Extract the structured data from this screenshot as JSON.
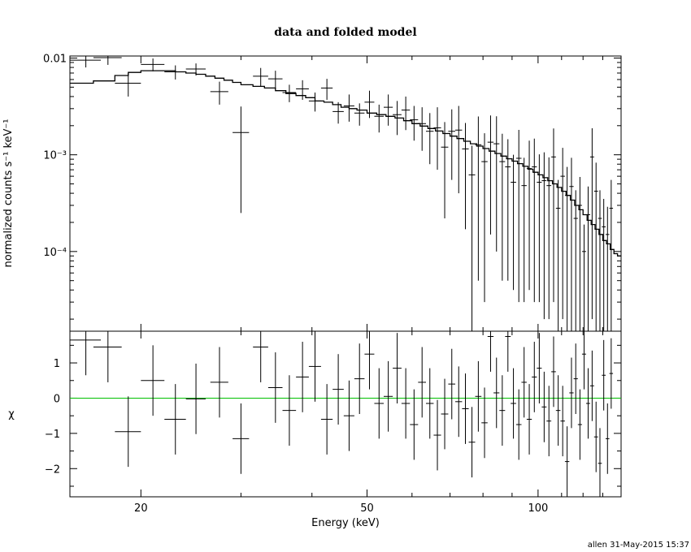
{
  "chart_data": [
    {
      "type": "scatter",
      "title": "data and folded model",
      "xlabel": "",
      "ylabel": "normalized counts s⁻¹ keV⁻¹",
      "xlim": [
        15,
        140
      ],
      "xscale": "log",
      "ylim": [
        1.5e-05,
        0.0105
      ],
      "yscale": "log",
      "yticks": [
        {
          "value": 0.01,
          "label": "0.01"
        },
        {
          "value": 0.001,
          "label": "10⁻³"
        },
        {
          "value": 0.0001,
          "label": "10⁻⁴"
        }
      ],
      "series": [
        {
          "name": "",
          "kind": "data",
          "x": [
            16.0,
            17.5,
            19.0,
            21.0,
            23.0,
            25.0,
            27.5,
            30.0,
            32.5,
            34.5,
            36.5,
            38.5,
            40.5,
            42.5,
            44.5,
            46.5,
            48.5,
            50.5,
            52.5,
            54.5,
            56.5,
            58.5,
            60.5,
            62.5,
            64.5,
            66.5,
            68.5,
            70.5,
            72.5,
            74.5,
            76.5,
            78.5,
            80.5,
            82.5,
            84.5,
            86.5,
            88.5,
            90.5,
            92.5,
            94.5,
            96.5,
            98.5,
            100.5,
            102.5,
            104.5,
            106.5,
            108.5,
            110.5,
            112.5,
            114.5,
            116.5,
            118.5,
            120.5,
            122.5,
            124.5,
            126.5,
            128.5,
            130.5,
            132.5,
            134.5
          ],
          "xerr": [
            1.0,
            1.0,
            1.0,
            1.0,
            1.0,
            1.0,
            1.0,
            1.0,
            1.0,
            1.0,
            1.0,
            1.0,
            1.0,
            1.0,
            1.0,
            1.0,
            1.0,
            1.0,
            1.0,
            1.0,
            1.0,
            1.0,
            1.0,
            1.0,
            1.0,
            1.0,
            1.0,
            1.0,
            1.0,
            1.0,
            1.0,
            1.0,
            1.0,
            1.0,
            1.0,
            1.0,
            1.0,
            1.0,
            1.0,
            1.0,
            1.0,
            1.0,
            1.0,
            1.0,
            1.0,
            1.0,
            1.0,
            1.0,
            1.0,
            1.0,
            1.0,
            1.0,
            1.0,
            1.0,
            1.0,
            1.0,
            1.0,
            1.0,
            1.0,
            1.0
          ],
          "y": [
            0.0095,
            0.0101,
            0.0055,
            0.0086,
            0.0072,
            0.0077,
            0.0045,
            0.0017,
            0.0065,
            0.0061,
            0.0044,
            0.0048,
            0.0036,
            0.0049,
            0.0028,
            0.0032,
            0.0027,
            0.0035,
            0.0025,
            0.0031,
            0.0026,
            0.0029,
            0.0023,
            0.0021,
            0.00175,
            0.0019,
            0.0012,
            0.00175,
            0.0018,
            0.00115,
            0.00062,
            0.00127,
            0.00085,
            0.00135,
            0.0013,
            0.00085,
            0.00075,
            0.00052,
            0.00092,
            0.00048,
            0.00072,
            0.00075,
            0.00052,
            0.00054,
            0.00048,
            0.00095,
            0.00028,
            0.0006,
            0.00038,
            0.00047,
            0.00022,
            0.0003,
            0.0001,
            0.00024,
            0.00095,
            0.00042,
            0.00022,
            0.00018,
            0.00015,
            0.00028
          ],
          "yerr_low": [
            0.0015,
            0.0016,
            0.0015,
            0.0013,
            0.0012,
            0.0011,
            0.0012,
            0.00145,
            0.0014,
            0.0013,
            0.0009,
            0.0011,
            0.0008,
            0.0012,
            0.0007,
            0.001,
            0.0007,
            0.0011,
            0.0008,
            0.0011,
            0.001,
            0.0011,
            0.0009,
            0.001,
            0.00095,
            0.0012,
            0.00098,
            0.0012,
            0.0014,
            0.00098,
            0.00062,
            0.00122,
            0.00082,
            0.0012,
            0.0012,
            0.0008,
            0.0007,
            0.00048,
            0.00089,
            0.00045,
            0.00068,
            0.00072,
            0.00049,
            0.00052,
            0.00046,
            0.00092,
            0.00027,
            0.00058,
            0.00037,
            0.00046,
            0.00021,
            0.00029,
            9e-05,
            0.00023,
            0.00093,
            0.00041,
            0.00021,
            0.00017,
            0.00014,
            0.00027
          ],
          "yerr_high": [
            0.0015,
            0.0016,
            0.0015,
            0.0013,
            0.0012,
            0.0011,
            0.0012,
            0.00145,
            0.0014,
            0.0013,
            0.0009,
            0.0011,
            0.0008,
            0.0012,
            0.0007,
            0.001,
            0.0007,
            0.0011,
            0.0008,
            0.0011,
            0.001,
            0.0011,
            0.0009,
            0.001,
            0.00095,
            0.0012,
            0.00098,
            0.0012,
            0.0014,
            0.00098,
            0.00062,
            0.00122,
            0.00082,
            0.0012,
            0.0012,
            0.0008,
            0.0007,
            0.00048,
            0.00089,
            0.00045,
            0.00068,
            0.00072,
            0.00049,
            0.00052,
            0.00046,
            0.00092,
            0.00027,
            0.00058,
            0.00037,
            0.00046,
            0.00021,
            0.00029,
            9e-05,
            0.00023,
            0.00093,
            0.00041,
            0.00021,
            0.00017,
            0.00014,
            0.00027
          ]
        },
        {
          "name": "",
          "kind": "model",
          "x": [
            15.0,
            16.5,
            18.0,
            19.0,
            20.0,
            21.0,
            22.0,
            23.0,
            24.0,
            25.0,
            26.0,
            27.0,
            28.0,
            29.0,
            30.0,
            31.5,
            33.0,
            34.5,
            36.0,
            37.5,
            39.0,
            40.5,
            42.0,
            43.5,
            45.0,
            46.5,
            48.0,
            50.0,
            52.0,
            54.0,
            56.0,
            58.0,
            60.0,
            62.0,
            64.0,
            66.0,
            68.0,
            70.0,
            72.0,
            74.0,
            76.0,
            78.0,
            80.0,
            82.0,
            84.0,
            86.0,
            88.0,
            90.0,
            92.0,
            94.0,
            96.0,
            98.0,
            100.0,
            102.0,
            104.0,
            106.0,
            108.0,
            110.0,
            112.0,
            114.0,
            116.0,
            118.0,
            120.0,
            122.0,
            124.0,
            126.0,
            128.0,
            130.0,
            132.0,
            134.0,
            136.0,
            138.0,
            140.0
          ],
          "y": [
            0.0055,
            0.0058,
            0.0066,
            0.0071,
            0.0074,
            0.0074,
            0.0074,
            0.0072,
            0.007,
            0.0068,
            0.0065,
            0.0062,
            0.0059,
            0.0056,
            0.0053,
            0.0051,
            0.0049,
            0.0046,
            0.0043,
            0.0041,
            0.0039,
            0.0036,
            0.0035,
            0.0033,
            0.0031,
            0.003,
            0.0029,
            0.0027,
            0.0026,
            0.0025,
            0.0024,
            0.00225,
            0.0021,
            0.00198,
            0.00187,
            0.00176,
            0.00166,
            0.00156,
            0.00147,
            0.00138,
            0.0013,
            0.00123,
            0.00116,
            0.00109,
            0.00103,
            0.00097,
            0.00091,
            0.00086,
            0.00081,
            0.00076,
            0.00071,
            0.00066,
            0.00062,
            0.00058,
            0.00054,
            0.0005,
            0.00046,
            0.00042,
            0.00038,
            0.00034,
            0.0003,
            0.00027,
            0.00024,
            0.00021,
            0.00019,
            0.00017,
            0.00015,
            0.00013,
            0.00012,
            0.000105,
            9.5e-05,
            9e-05,
            8.5e-05
          ]
        }
      ]
    },
    {
      "type": "scatter",
      "title": "",
      "xlabel": "Energy (keV)",
      "ylabel": "χ",
      "xlim": [
        15,
        140
      ],
      "xscale": "log",
      "xticks": [
        {
          "value": 20,
          "label": "20"
        },
        {
          "value": 50,
          "label": "50"
        },
        {
          "value": 100,
          "label": "100"
        }
      ],
      "ylim": [
        -2.8,
        1.9
      ],
      "yticks": [
        {
          "value": 1,
          "label": "1"
        },
        {
          "value": 0,
          "label": "0"
        },
        {
          "value": -1,
          "label": "−1"
        },
        {
          "value": -2,
          "label": "−2"
        }
      ],
      "zero_line_color": "#00c000",
      "series": [
        {
          "name": "",
          "kind": "residuals",
          "x": [
            16.0,
            17.5,
            19.0,
            21.0,
            23.0,
            25.0,
            27.5,
            30.0,
            32.5,
            34.5,
            36.5,
            38.5,
            40.5,
            42.5,
            44.5,
            46.5,
            48.5,
            50.5,
            52.5,
            54.5,
            56.5,
            58.5,
            60.5,
            62.5,
            64.5,
            66.5,
            68.5,
            70.5,
            72.5,
            74.5,
            76.5,
            78.5,
            80.5,
            82.5,
            84.5,
            86.5,
            88.5,
            90.5,
            92.5,
            94.5,
            96.5,
            98.5,
            100.5,
            102.5,
            104.5,
            106.5,
            108.5,
            110.5,
            112.5,
            114.5,
            116.5,
            118.5,
            120.5,
            122.5,
            124.5,
            126.5,
            128.5,
            130.5,
            132.5,
            134.5
          ],
          "xerr": [
            1.0,
            1.0,
            1.0,
            1.0,
            1.0,
            1.0,
            1.0,
            1.0,
            1.0,
            1.0,
            1.0,
            1.0,
            1.0,
            1.0,
            1.0,
            1.0,
            1.0,
            1.0,
            1.0,
            1.0,
            1.0,
            1.0,
            1.0,
            1.0,
            1.0,
            1.0,
            1.0,
            1.0,
            1.0,
            1.0,
            1.0,
            1.0,
            1.0,
            1.0,
            1.0,
            1.0,
            1.0,
            1.0,
            1.0,
            1.0,
            1.0,
            1.0,
            1.0,
            1.0,
            1.0,
            1.0,
            1.0,
            1.0,
            1.0,
            1.0,
            1.0,
            1.0,
            1.0,
            1.0,
            1.0,
            1.0,
            1.0,
            1.0,
            1.0,
            1.0
          ],
          "y": [
            1.65,
            1.45,
            -0.95,
            0.5,
            -0.6,
            -0.02,
            0.45,
            -1.15,
            1.45,
            0.3,
            -0.35,
            0.6,
            0.9,
            -0.6,
            0.25,
            -0.5,
            0.55,
            1.25,
            -0.15,
            0.05,
            0.85,
            -0.15,
            -0.75,
            0.45,
            -0.15,
            -1.05,
            -0.45,
            0.4,
            -0.1,
            -0.3,
            -1.25,
            0.05,
            -0.7,
            1.75,
            0.15,
            -0.35,
            1.75,
            -0.15,
            -0.75,
            0.45,
            -0.6,
            0.6,
            0.85,
            -0.25,
            -0.65,
            0.75,
            -0.35,
            -0.65,
            -1.8,
            0.15,
            0.55,
            -0.75,
            1.25,
            -0.15,
            0.35,
            -1.1,
            -1.85,
            0.65,
            -1.15,
            0.7
          ],
          "yerr": [
            1.0,
            1.0,
            1.0,
            1.0,
            1.0,
            1.0,
            1.0,
            1.0,
            1.0,
            1.0,
            1.0,
            1.0,
            1.0,
            1.0,
            1.0,
            1.0,
            1.0,
            1.0,
            1.0,
            1.0,
            1.0,
            1.0,
            1.0,
            1.0,
            1.0,
            1.0,
            1.0,
            1.0,
            1.0,
            1.0,
            1.0,
            1.0,
            1.0,
            1.0,
            1.0,
            1.0,
            1.0,
            1.0,
            1.0,
            1.0,
            1.0,
            1.0,
            1.0,
            1.0,
            1.0,
            1.0,
            1.0,
            1.0,
            1.0,
            1.0,
            1.0,
            1.0,
            1.0,
            1.0,
            1.0,
            1.0,
            1.0,
            1.0,
            1.0,
            1.0
          ]
        }
      ]
    }
  ],
  "footer": {
    "stamp": "allen 31-May-2015 15:37"
  }
}
